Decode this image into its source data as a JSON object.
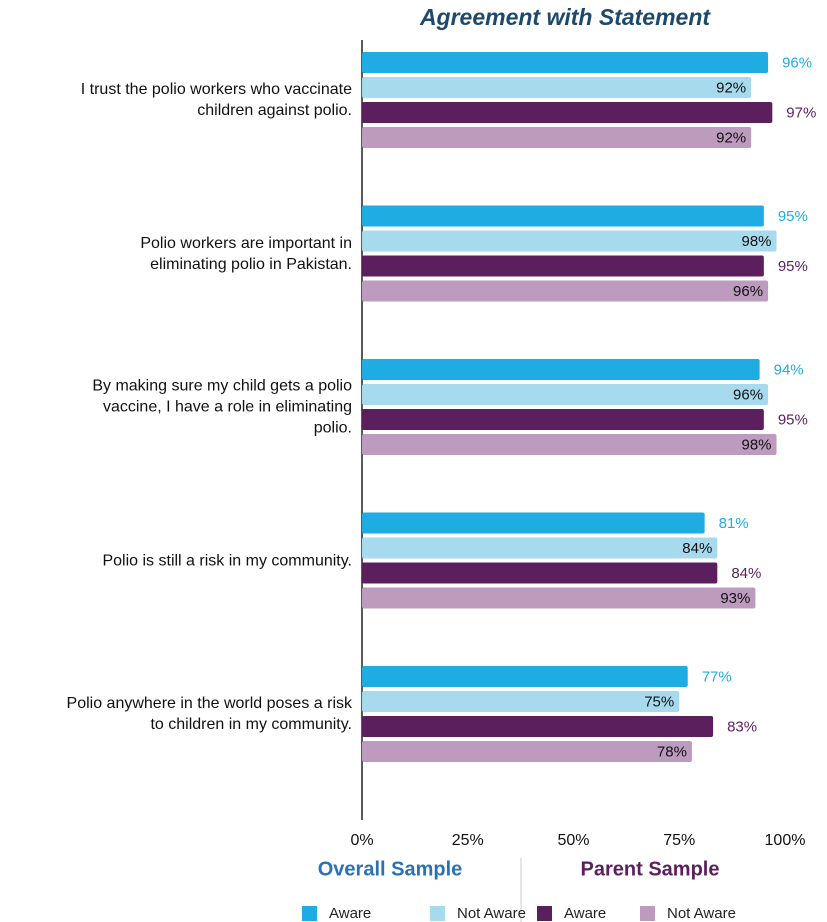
{
  "chart_data": {
    "type": "hbar",
    "title": "Agreement with Statement",
    "categories": [
      "I trust the polio workers who vaccinate\nchildren against polio.",
      "Polio workers are important in\neliminating polio in Pakistan.",
      "By making sure my child gets a polio\nvaccine, I have a role in eliminating\npolio.",
      "Polio is still a risk in my community.",
      "Polio anywhere in the world poses a risk\nto children in my community."
    ],
    "legend_groups": [
      "Overall Sample",
      "Parent Sample"
    ],
    "series": [
      {
        "name": "Aware",
        "color": "#1eace2",
        "values": [
          96,
          95,
          94,
          81,
          77
        ],
        "value_labels": [
          "96%",
          "95%",
          "94%",
          "81%",
          "77%"
        ]
      },
      {
        "name": "Not Aware",
        "color": "#a8daee",
        "values": [
          92,
          98,
          96,
          84,
          75
        ],
        "value_labels": [
          "92%",
          "98%",
          "96%",
          "84%",
          "75%"
        ]
      },
      {
        "name": "Aware",
        "color": "#5b1f5d",
        "values": [
          97,
          95,
          95,
          84,
          83
        ],
        "value_labels": [
          "97%",
          "95%",
          "95%",
          "84%",
          "83%"
        ]
      },
      {
        "name": "Not Aware",
        "color": "#bd9bbf",
        "values": [
          92,
          96,
          98,
          93,
          78
        ],
        "value_labels": [
          "92%",
          "96%",
          "98%",
          "93%",
          "78%"
        ]
      }
    ],
    "xlim": [
      0,
      100
    ],
    "xticks": [
      {
        "value": 0,
        "label": "0%"
      },
      {
        "value": 25,
        "label": "25%"
      },
      {
        "value": 50,
        "label": "50%"
      },
      {
        "value": 75,
        "label": "75%"
      },
      {
        "value": 100,
        "label": "100%"
      }
    ],
    "grid": false
  }
}
